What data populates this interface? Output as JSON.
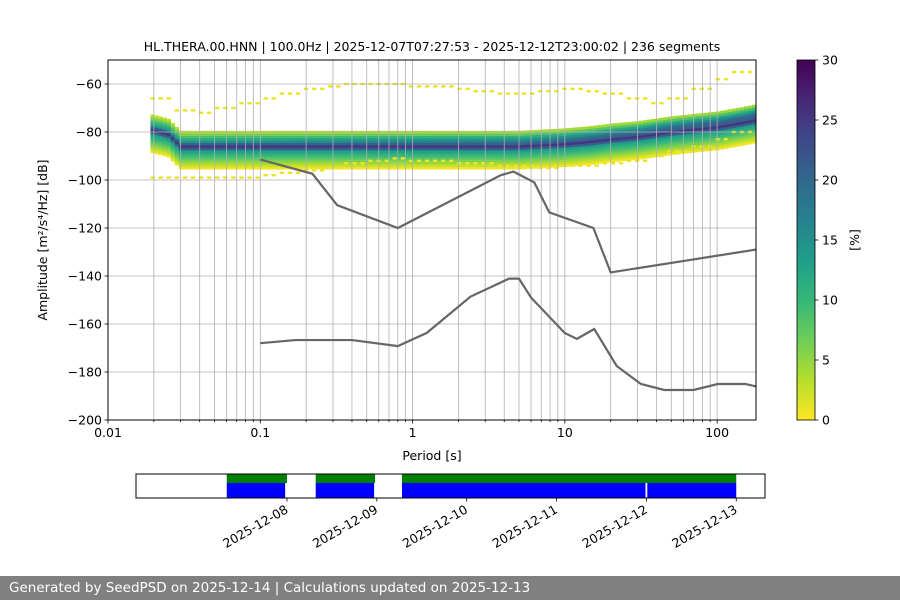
{
  "chart_data": [
    {
      "type": "heatmap",
      "title": "HL.THERA.00.HNN | 100.0Hz | 2025-12-07T07:27:53 - 2025-12-12T23:00:02 | 236 segments",
      "xlabel": "Period [s]",
      "ylabel": "Amplitude [m²/s⁴/Hz] [dB]",
      "x_scale": "log",
      "xlim": [
        0.01,
        180
      ],
      "ylim": [
        -200,
        -50
      ],
      "x_ticks": [
        0.01,
        0.1,
        1,
        10,
        100
      ],
      "x_tick_labels": [
        "0.01",
        "0.1",
        "1",
        "10",
        "100"
      ],
      "y_ticks": [
        -200,
        -180,
        -160,
        -140,
        -120,
        -100,
        -80,
        -60
      ],
      "y_tick_labels": [
        "−200",
        "−180",
        "−160",
        "−140",
        "−120",
        "−100",
        "−80",
        "−60"
      ],
      "grid": true,
      "colorbar": {
        "label": "[%]",
        "min": 0,
        "max": 30,
        "ticks": [
          0,
          5,
          10,
          15,
          20,
          25,
          30
        ],
        "tick_labels": [
          "0",
          "5",
          "10",
          "15",
          "20",
          "25",
          "30"
        ],
        "colormap": [
          "#fde725",
          "#b5de2b",
          "#6ece58",
          "#35b779",
          "#1f9e89",
          "#26828e",
          "#31688e",
          "#3e4989",
          "#482878",
          "#440154"
        ]
      },
      "psd_mode_curve": {
        "period": [
          0.019,
          0.022,
          0.025,
          0.03,
          0.05,
          0.1,
          0.2,
          0.5,
          1,
          2,
          5,
          10,
          15,
          20,
          30,
          50,
          70,
          100,
          150,
          180
        ],
        "db": [
          -79,
          -80,
          -81,
          -86,
          -86,
          -86,
          -86,
          -86,
          -86,
          -86,
          -86,
          -85,
          -84,
          -83,
          -82,
          -80,
          -79,
          -78,
          -76,
          -75
        ]
      },
      "psd_spread_db": [
        [
          -99,
          -99,
          -99,
          -99,
          -99,
          -98,
          -97,
          -96,
          -95,
          -93,
          -92,
          -91,
          -92,
          -92,
          -93,
          -93,
          -94,
          -94,
          -95,
          -94,
          -94,
          -93,
          -92,
          -90,
          -88,
          -86,
          -83,
          -80
        ],
        [
          -66,
          -71,
          -72,
          -70,
          -68,
          -66,
          -64,
          -62,
          -61,
          -60,
          -60,
          -60,
          -61,
          -61,
          -62,
          -63,
          -64,
          -64,
          -63,
          -62,
          -63,
          -64,
          -66,
          -68,
          -66,
          -62,
          -58,
          -55
        ]
      ],
      "noise_models": [
        {
          "name": "NHNM",
          "period": [
            0.1,
            0.22,
            0.32,
            0.8,
            3.8,
            4.6,
            6.3,
            7.9,
            15.4,
            20,
            180
          ],
          "db": [
            -91.5,
            -97.4,
            -110.5,
            -120,
            -98,
            -96.5,
            -101,
            -113.5,
            -120,
            -138.5,
            -129
          ]
        },
        {
          "name": "NLNM",
          "period": [
            0.1,
            0.17,
            0.4,
            0.8,
            1.24,
            2.4,
            4.3,
            5.0,
            6.0,
            10.0,
            12.0,
            15.6,
            21.9,
            31.6,
            45,
            70,
            101,
            154,
            180
          ],
          "db": [
            -168,
            -166.7,
            -166.7,
            -169.2,
            -163.7,
            -148.6,
            -141.1,
            -141.1,
            -149,
            -163.8,
            -166.2,
            -162.1,
            -177.5,
            -185,
            -187.5,
            -187.5,
            -185,
            -185,
            -186
          ]
        }
      ]
    },
    {
      "type": "timeline",
      "x_tick_labels": [
        "2025-12-08",
        "2025-12-09",
        "2025-12-10",
        "2025-12-11",
        "2025-12-12",
        "2025-12-13"
      ],
      "data_segments_days": [
        [
          0.33,
          1.0
        ],
        [
          1.32,
          1.98
        ],
        [
          2.28,
          6.0
        ]
      ],
      "used_segments_days": [
        [
          0.33,
          0.98
        ],
        [
          1.32,
          1.97
        ],
        [
          2.28,
          4.99
        ],
        [
          5.01,
          6.0
        ]
      ],
      "series_colors": {
        "data": "#008000",
        "used": "#0000ff"
      }
    }
  ],
  "footer": {
    "text": "Generated by SeedPSD on 2025-12-14 | Calculations updated on 2025-12-13"
  }
}
